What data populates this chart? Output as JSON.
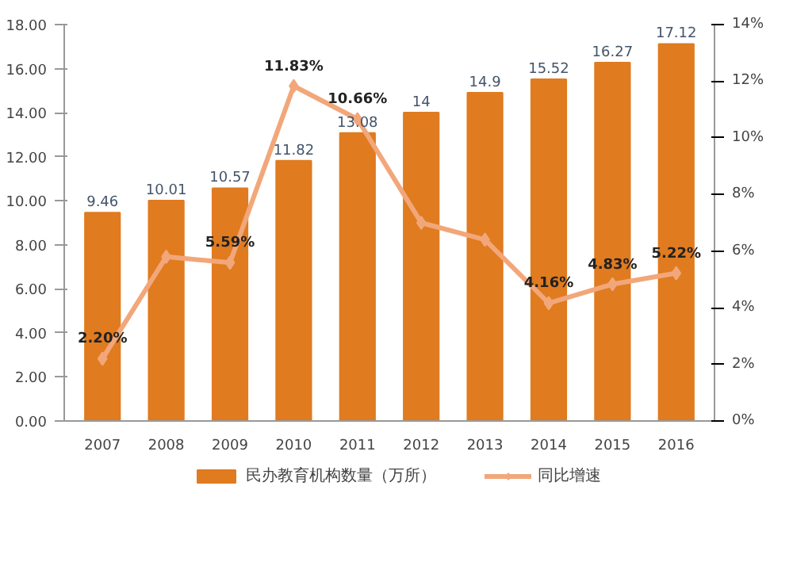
{
  "chart_data": {
    "type": "bar",
    "categories": [
      "2007",
      "2008",
      "2009",
      "2010",
      "2011",
      "2012",
      "2013",
      "2014",
      "2015",
      "2016"
    ],
    "series": [
      {
        "name": "民办教育机构数量（万所）",
        "color": "#e07b20",
        "values": [
          9.46,
          10.01,
          10.57,
          11.82,
          13.08,
          14,
          14.9,
          15.52,
          16.27,
          17.12
        ]
      },
      {
        "name": "同比增速",
        "type": "line",
        "axis": "y2",
        "color": "#f2a77a",
        "marker": "diamond",
        "values": [
          2.2,
          5.8,
          5.59,
          11.83,
          10.66,
          7.0,
          6.4,
          4.16,
          4.83,
          5.22
        ],
        "value_labels": [
          "2.20%",
          null,
          "5.59%",
          "11.83%",
          "10.66%",
          null,
          null,
          "4.16%",
          "4.83%",
          "5.22%"
        ]
      }
    ],
    "data_labels": true,
    "ylim": [
      0,
      18
    ],
    "yticks": [
      {
        "value": 0,
        "label": "0.00"
      },
      {
        "value": 2,
        "label": "2.00"
      },
      {
        "value": 4,
        "label": "4.00"
      },
      {
        "value": 6,
        "label": "6.00"
      },
      {
        "value": 8,
        "label": "8.00"
      },
      {
        "value": 10,
        "label": "10.00"
      },
      {
        "value": 12,
        "label": "12.00"
      },
      {
        "value": 14,
        "label": "14.00"
      },
      {
        "value": 16,
        "label": "16.00"
      },
      {
        "value": 18,
        "label": "18.00"
      }
    ],
    "y2lim": [
      0,
      14
    ],
    "y2ticks": [
      {
        "value": 0,
        "label": "0%"
      },
      {
        "value": 2,
        "label": "2%"
      },
      {
        "value": 4,
        "label": "4%"
      },
      {
        "value": 6,
        "label": "6%"
      },
      {
        "value": 8,
        "label": "8%"
      },
      {
        "value": 10,
        "label": "10%"
      },
      {
        "value": 12,
        "label": "12%"
      },
      {
        "value": 14,
        "label": "14%"
      }
    ],
    "grid": false,
    "legend": "bottom"
  }
}
